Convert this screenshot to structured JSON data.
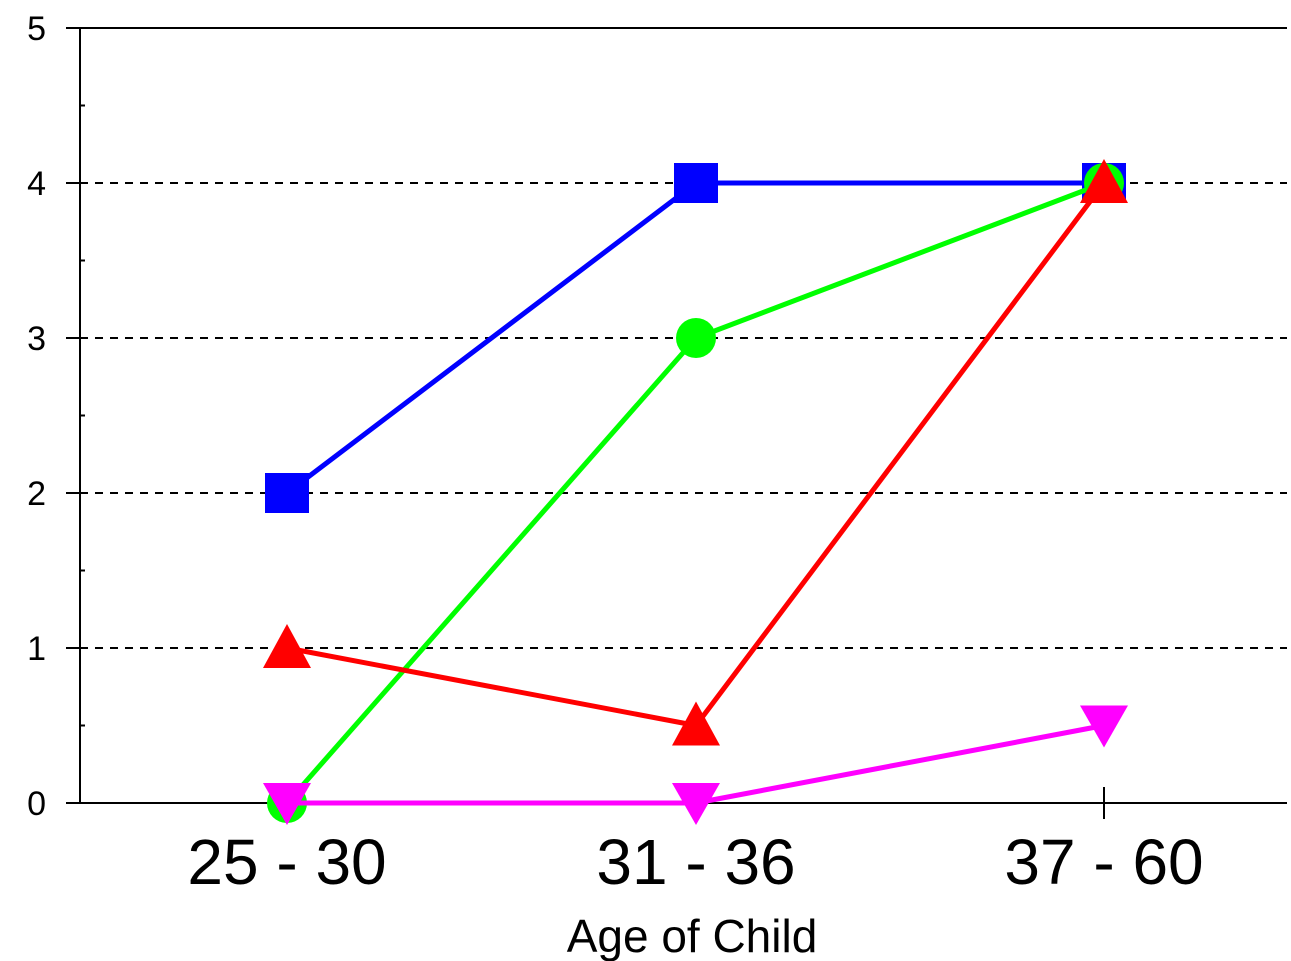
{
  "chart_data": {
    "type": "line",
    "title": "",
    "xlabel": "Age of Child",
    "ylabel": "",
    "categories": [
      "25 - 30",
      "31 - 36",
      "37 - 60"
    ],
    "ylim": [
      0,
      5
    ],
    "yticks": [
      "0",
      "1",
      "2",
      "3",
      "4",
      "5"
    ],
    "grid": "horizontal dashed",
    "series": [
      {
        "color": "#0000ff",
        "marker": "square",
        "values": [
          2,
          4,
          4
        ]
      },
      {
        "color": "#00ff00",
        "marker": "circle",
        "values": [
          0,
          3,
          4
        ]
      },
      {
        "color": "#ff0000",
        "marker": "triangle-up",
        "values": [
          1,
          0.5,
          4
        ]
      },
      {
        "color": "#ff00ff",
        "marker": "triangle-down",
        "values": [
          0,
          0,
          0.5
        ]
      }
    ]
  }
}
